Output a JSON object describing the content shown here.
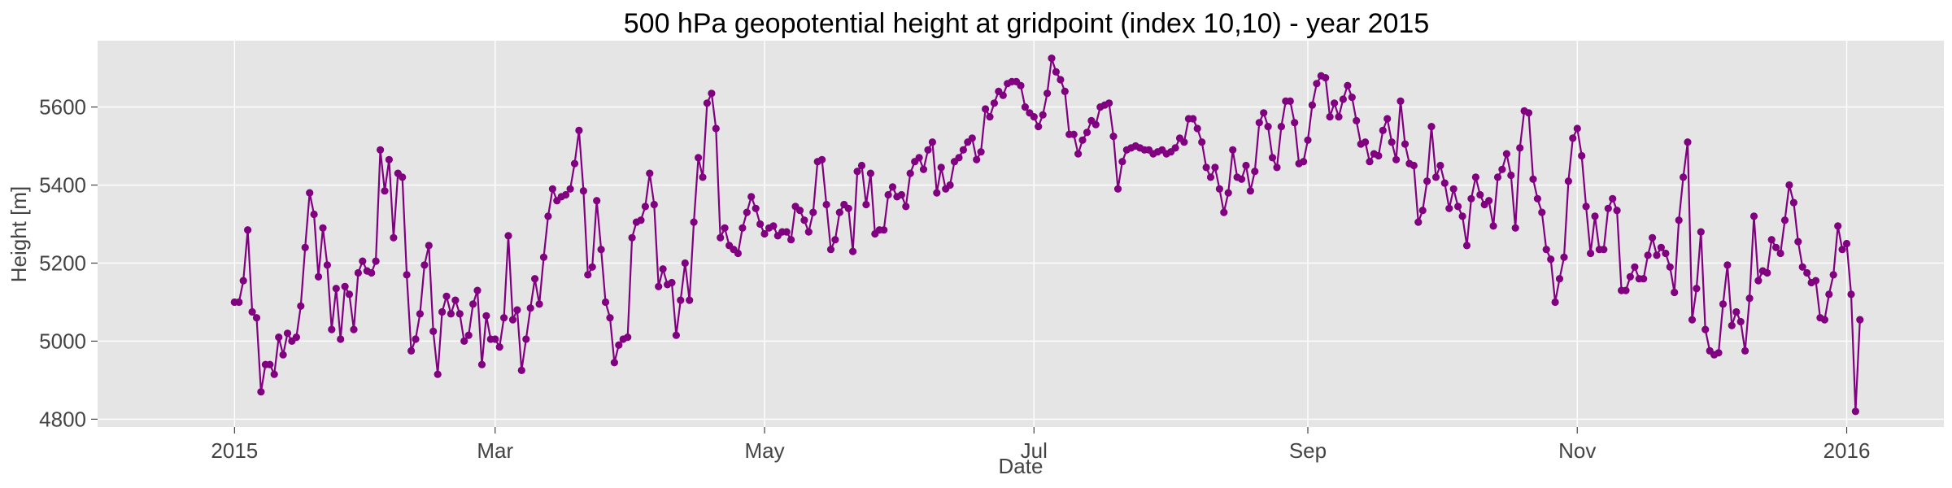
{
  "chart_data": {
    "type": "line",
    "title": "500 hPa geopotential height at gridpoint (index 10,10) - year 2015",
    "xlabel": "Date",
    "ylabel": "Height [m]",
    "x_start": "2015-01-01",
    "x_range": [
      "2014-12-01",
      "2016-01-23"
    ],
    "ylim": [
      4780,
      5770
    ],
    "xticks": [
      {
        "date": "2015-01-01",
        "label": "2015"
      },
      {
        "date": "2015-03-01",
        "label": "Mar"
      },
      {
        "date": "2015-05-01",
        "label": "May"
      },
      {
        "date": "2015-07-01",
        "label": "Jul"
      },
      {
        "date": "2015-09-01",
        "label": "Sep"
      },
      {
        "date": "2015-11-01",
        "label": "Nov"
      },
      {
        "date": "2016-01-01",
        "label": "2016"
      }
    ],
    "yticks": [
      4800,
      5000,
      5200,
      5400,
      5600
    ],
    "grid": true,
    "line_color": "#800080",
    "background": "#e5e5e5",
    "series": [
      {
        "step_days": 1,
        "values": [
          5100,
          5100,
          5155,
          5285,
          5075,
          5060,
          4870,
          4940,
          4940,
          4915,
          5010,
          4965,
          5020,
          5000,
          5010,
          5090,
          5240,
          5380,
          5325,
          5165,
          5290,
          5195,
          5030,
          5135,
          5005,
          5140,
          5120,
          5030,
          5175,
          5205,
          5180,
          5175,
          5205,
          5490,
          5385,
          5465,
          5265,
          5430,
          5420,
          5170,
          4975,
          5005,
          5070,
          5195,
          5245,
          5025,
          4915,
          5075,
          5115,
          5070,
          5105,
          5070,
          5000,
          5015,
          5095,
          5130,
          4940,
          5065,
          5005,
          5005,
          4985,
          5060,
          5270,
          5055,
          5080,
          4925,
          5005,
          5085,
          5160,
          5095,
          5215,
          5320,
          5390,
          5360,
          5370,
          5375,
          5390,
          5455,
          5540,
          5385,
          5170,
          5190,
          5360,
          5235,
          5100,
          5060,
          4945,
          4990,
          5005,
          5010,
          5265,
          5305,
          5310,
          5345,
          5430,
          5350,
          5140,
          5185,
          5145,
          5150,
          5015,
          5105,
          5200,
          5105,
          5305,
          5470,
          5420,
          5610,
          5635,
          5545,
          5265,
          5290,
          5245,
          5235,
          5225,
          5290,
          5330,
          5370,
          5340,
          5300,
          5275,
          5290,
          5295,
          5270,
          5280,
          5280,
          5260,
          5345,
          5335,
          5310,
          5280,
          5330,
          5460,
          5465,
          5350,
          5235,
          5260,
          5330,
          5350,
          5340,
          5230,
          5435,
          5450,
          5350,
          5430,
          5275,
          5285,
          5285,
          5375,
          5395,
          5370,
          5375,
          5345,
          5430,
          5460,
          5470,
          5440,
          5490,
          5510,
          5380,
          5445,
          5390,
          5400,
          5460,
          5470,
          5490,
          5510,
          5520,
          5465,
          5485,
          5595,
          5575,
          5610,
          5640,
          5630,
          5660,
          5665,
          5665,
          5655,
          5600,
          5585,
          5575,
          5550,
          5580,
          5635,
          5725,
          5690,
          5670,
          5640,
          5530,
          5530,
          5480,
          5515,
          5535,
          5565,
          5555,
          5600,
          5605,
          5610,
          5525,
          5390,
          5460,
          5490,
          5495,
          5500,
          5495,
          5490,
          5490,
          5480,
          5485,
          5490,
          5480,
          5485,
          5495,
          5520,
          5510,
          5570,
          5570,
          5545,
          5510,
          5445,
          5420,
          5445,
          5390,
          5330,
          5380,
          5490,
          5420,
          5415,
          5450,
          5385,
          5435,
          5560,
          5585,
          5550,
          5470,
          5445,
          5550,
          5615,
          5615,
          5560,
          5455,
          5460,
          5515,
          5605,
          5660,
          5680,
          5675,
          5575,
          5610,
          5575,
          5620,
          5655,
          5625,
          5565,
          5505,
          5510,
          5460,
          5480,
          5475,
          5540,
          5570,
          5510,
          5465,
          5615,
          5505,
          5455,
          5450,
          5305,
          5335,
          5410,
          5550,
          5420,
          5450,
          5405,
          5340,
          5390,
          5345,
          5320,
          5245,
          5365,
          5420,
          5375,
          5350,
          5360,
          5295,
          5420,
          5440,
          5480,
          5425,
          5290,
          5495,
          5590,
          5585,
          5415,
          5365,
          5330,
          5235,
          5210,
          5100,
          5160,
          5215,
          5410,
          5520,
          5545,
          5475,
          5345,
          5225,
          5320,
          5235,
          5235,
          5340,
          5365,
          5335,
          5130,
          5130,
          5165,
          5190,
          5160,
          5160,
          5220,
          5265,
          5220,
          5240,
          5225,
          5190,
          5125,
          5310,
          5420,
          5510,
          5055,
          5135,
          5280,
          5030,
          4975,
          4965,
          4970,
          5095,
          5195,
          5040,
          5075,
          5050,
          4975,
          5110,
          5320,
          5155,
          5180,
          5175,
          5260,
          5240,
          5225,
          5310,
          5400,
          5355,
          5255,
          5190,
          5175,
          5150,
          5155,
          5060,
          5055,
          5120,
          5170,
          5295,
          5235,
          5250,
          5120,
          4820,
          5055
        ]
      }
    ]
  }
}
